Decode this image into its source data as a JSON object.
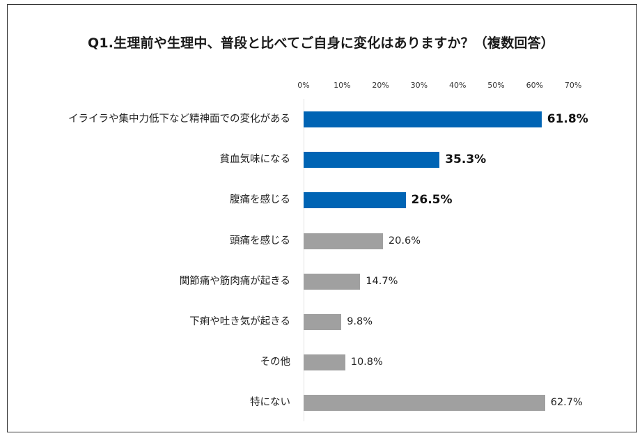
{
  "chart_data": {
    "type": "bar",
    "orientation": "horizontal",
    "title": "Q1.生理前や生理中、普段と比べてご自身に変化はありますか？（複数回答）",
    "xlabel": "",
    "ylabel": "",
    "xlim": [
      0,
      70
    ],
    "x_ticks": [
      "0%",
      "10%",
      "20%",
      "30%",
      "40%",
      "50%",
      "60%",
      "70%"
    ],
    "grid": false,
    "legend": null,
    "categories": [
      "イライラや集中力低下など精神面での変化がある",
      "貧血気味になる",
      "腹痛を感じる",
      "頭痛を感じる",
      "関節痛や筋肉痛が起きる",
      "下痢や吐き気が起きる",
      "その他",
      "特にない"
    ],
    "values": [
      61.8,
      35.3,
      26.5,
      20.6,
      14.7,
      9.8,
      10.8,
      62.7
    ],
    "value_labels": [
      "61.8%",
      "35.3%",
      "26.5%",
      "20.6%",
      "14.7%",
      "9.8%",
      "10.8%",
      "62.7%"
    ],
    "highlighted": [
      true,
      true,
      true,
      false,
      false,
      false,
      false,
      false
    ],
    "colors": {
      "highlight": "#0064b4",
      "normal": "#a0a0a0",
      "axis": "#e2e2e2",
      "frame": "#333333"
    }
  }
}
